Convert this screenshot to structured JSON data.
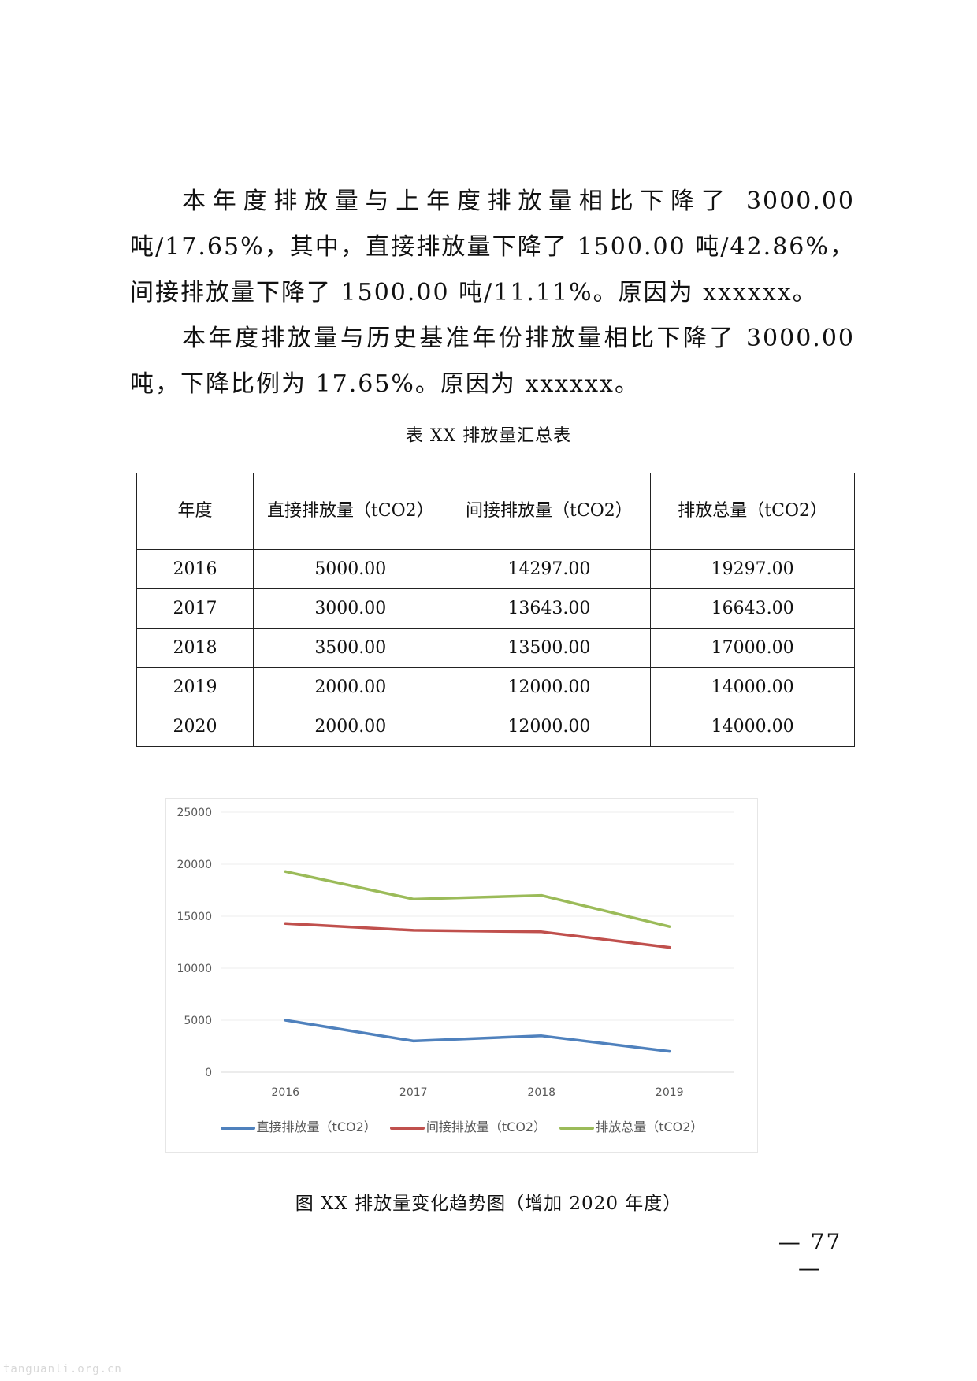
{
  "paragraphs": [
    "本年度排放量与上年度排放量相比下降了 3000.00 吨/17.65%，其中，直接排放量下降了 1500.00 吨/42.86%，间接排放量下降了 1500.00 吨/11.11%。原因为 xxxxxx。",
    "本年度排放量与历史基准年份排放量相比下降了 3000.00 吨，下降比例为 17.65%。原因为 xxxxxx。"
  ],
  "table": {
    "caption": "表 XX  排放量汇总表",
    "headers": [
      "年度",
      "直接排放量（tCO2）",
      "间接排放量（tCO2）",
      "排放总量（tCO2）"
    ],
    "rows": [
      [
        "2016",
        "5000.00",
        "14297.00",
        "19297.00"
      ],
      [
        "2017",
        "3000.00",
        "13643.00",
        "16643.00"
      ],
      [
        "2018",
        "3500.00",
        "13500.00",
        "17000.00"
      ],
      [
        "2019",
        "2000.00",
        "12000.00",
        "14000.00"
      ],
      [
        "2020",
        "2000.00",
        "12000.00",
        "14000.00"
      ]
    ]
  },
  "chart_data": {
    "type": "line",
    "x": [
      "2016",
      "2017",
      "2018",
      "2019"
    ],
    "ylim": [
      0,
      25000
    ],
    "yticks": [
      "0",
      "5000",
      "10000",
      "15000",
      "20000",
      "25000"
    ],
    "grid": true,
    "legend_position": "bottom",
    "series": [
      {
        "name": "直接排放量（tCO2）",
        "color": "#4F81BD",
        "values": [
          5000,
          3000,
          3500,
          2000
        ]
      },
      {
        "name": "间接排放量（tCO2）",
        "color": "#C0504D",
        "values": [
          14297,
          13643,
          13500,
          12000
        ]
      },
      {
        "name": "排放总量（tCO2）",
        "color": "#9BBB59",
        "values": [
          19297,
          16643,
          17000,
          14000
        ]
      }
    ]
  },
  "figure_caption": "图 XX  排放量变化趋势图（增加 2020 年度）",
  "page_number": "— 77 —",
  "watermark": "tanguanli.org.cn"
}
